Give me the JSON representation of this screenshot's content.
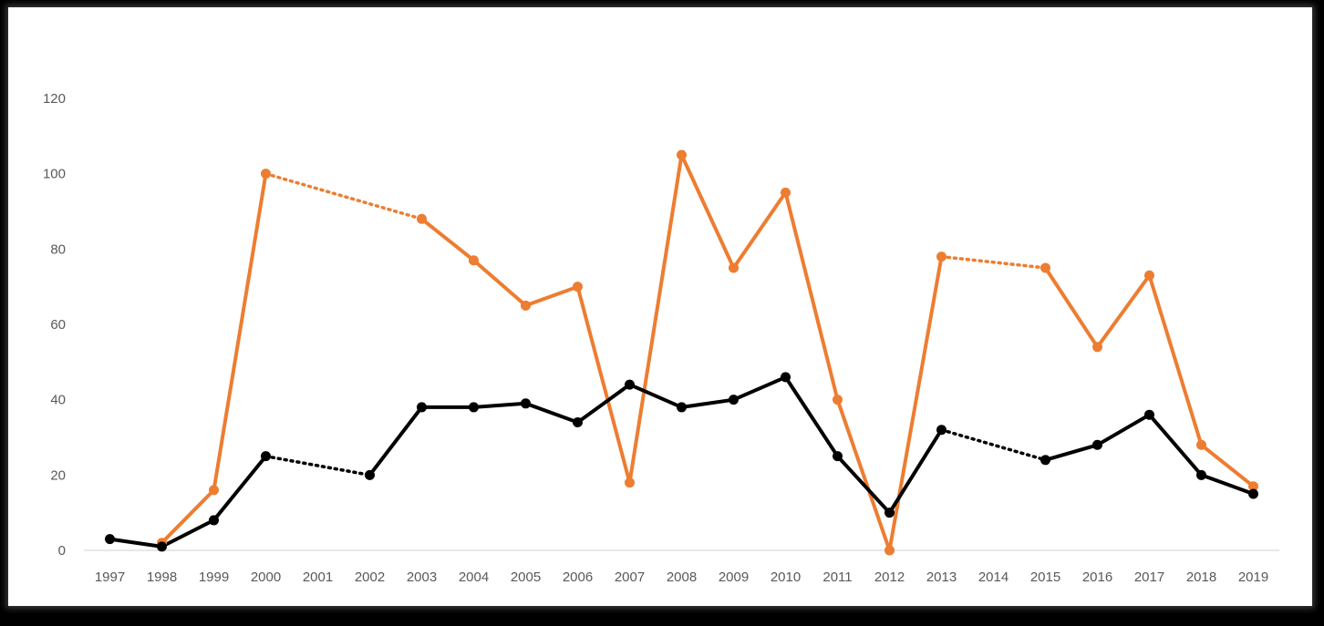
{
  "chart_data": {
    "type": "line",
    "title": "",
    "xlabel": "",
    "ylabel": "",
    "x": [
      "1997",
      "1998",
      "1999",
      "2000",
      "2001",
      "2002",
      "2003",
      "2004",
      "2005",
      "2006",
      "2007",
      "2008",
      "2009",
      "2010",
      "2011",
      "2012",
      "2013",
      "2014",
      "2015",
      "2016",
      "2017",
      "2018",
      "2019"
    ],
    "ylim": [
      0,
      120
    ],
    "yticks": [
      0,
      20,
      40,
      60,
      80,
      100,
      120
    ],
    "grid": false,
    "legend": "none",
    "series": [
      {
        "color": "#ED7D31",
        "values": [
          null,
          2,
          16,
          100,
          null,
          null,
          88,
          77,
          65,
          70,
          18,
          105,
          75,
          95,
          40,
          0,
          78,
          null,
          75,
          54,
          73,
          28,
          17
        ],
        "dotted_gaps": [
          [
            "2000",
            "2003"
          ],
          [
            "2013",
            "2015"
          ]
        ]
      },
      {
        "color": "#000000",
        "values": [
          3,
          1,
          8,
          25,
          null,
          20,
          38,
          38,
          39,
          34,
          44,
          38,
          40,
          46,
          25,
          10,
          32,
          null,
          24,
          28,
          36,
          20,
          15
        ],
        "dotted_gaps": [
          [
            "2000",
            "2002"
          ],
          [
            "2013",
            "2015"
          ]
        ]
      }
    ]
  }
}
